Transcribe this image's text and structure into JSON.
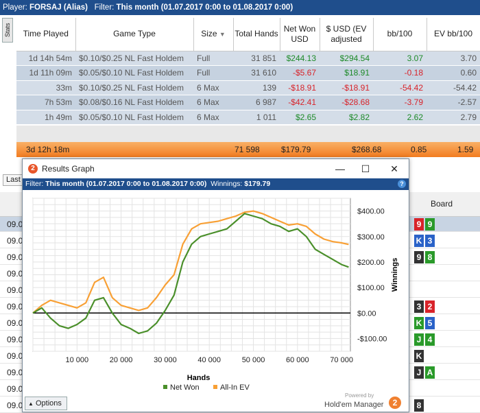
{
  "topbar": {
    "player_label": "Player:",
    "player_value": "FORSAJ (Alias)",
    "filter_label": "Filter:",
    "filter_value": "This month (01.07.2017 0:00 to 01.08.2017 0:00)"
  },
  "stats_tab": "Stats",
  "table": {
    "headers": [
      "Time Played",
      "Game Type",
      "Size",
      "Total Hands",
      "Net Won USD",
      "$ USD (EV adjusted",
      "bb/100",
      "EV bb/100"
    ],
    "rows": [
      {
        "time": "1d 14h 54m",
        "game": "$0.10/$0.25 NL Fast Holdem",
        "size": "Full",
        "hands": "31 851",
        "net": "$244.13",
        "ev": "$294.54",
        "bb": "3.07",
        "evbb": "3.70"
      },
      {
        "time": "1d 11h 09m",
        "game": "$0.05/$0.10 NL Fast Holdem",
        "size": "Full",
        "hands": "31 610",
        "net": "-$5.67",
        "ev": "$18.91",
        "bb": "-0.18",
        "evbb": "0.60"
      },
      {
        "time": "33m",
        "game": "$0.10/$0.25 NL Fast Holdem",
        "size": "6 Max",
        "hands": "139",
        "net": "-$18.91",
        "ev": "-$18.91",
        "bb": "-54.42",
        "evbb": "-54.42"
      },
      {
        "time": "7h 53m",
        "game": "$0.08/$0.16 NL Fast Holdem",
        "size": "6 Max",
        "hands": "6 987",
        "net": "-$42.41",
        "ev": "-$28.68",
        "bb": "-3.79",
        "evbb": "-2.57"
      },
      {
        "time": "1h 49m",
        "game": "$0.05/$0.10 NL Fast Holdem",
        "size": "6 Max",
        "hands": "1 011",
        "net": "$2.65",
        "ev": "$2.82",
        "bb": "2.62",
        "evbb": "2.79"
      }
    ],
    "total": {
      "time": "3d 12h 18m",
      "hands": "71 598",
      "net": "$179.79",
      "ev": "$268.68",
      "bb": "0.85",
      "evbb": "1.59"
    }
  },
  "lower": {
    "last_button": "Last",
    "board_header": "Board",
    "rows": [
      "09.0",
      "09.0",
      "09.0",
      "09.0",
      "09.0",
      "09.0",
      "09.0",
      "09.0",
      "09.0",
      "09.0",
      "09.0",
      "09.0"
    ]
  },
  "window": {
    "title": "Results Graph",
    "logo": "2",
    "filter_label": "Filter:",
    "filter_value": "This month (01.07.2017 0:00 to 01.08.2017 0:00)",
    "winnings_label": "Winnings:",
    "winnings_value": "$179.79",
    "help": "?",
    "options_label": "Options",
    "powered_by": "Powered by",
    "brand": "Hold'em Manager"
  },
  "colors": {
    "net_won": "#4a8f2a",
    "all_in_ev": "#f8a035",
    "zero_line": "#000000",
    "header_blue": "#1f4e8c",
    "total_orange": "#f4892c"
  },
  "chart_data": {
    "type": "line",
    "xlabel": "Hands",
    "ylabel": "Winnings",
    "xlim": [
      0,
      72000
    ],
    "ylim": [
      -150,
      450
    ],
    "x_ticks": [
      10000,
      20000,
      30000,
      40000,
      50000,
      60000,
      70000
    ],
    "x_tick_labels": [
      "10 000",
      "20 000",
      "30 000",
      "40 000",
      "50 000",
      "60 000",
      "70 000"
    ],
    "y_ticks": [
      -100,
      0,
      100,
      200,
      300,
      400
    ],
    "y_tick_labels": [
      "-$100.00",
      "$0.00",
      "$100.00",
      "$200.00",
      "$300.00",
      "$400.00"
    ],
    "legend": [
      "Net Won",
      "All-In EV"
    ],
    "legend_position": "bottom",
    "grid": true,
    "x": [
      0,
      2000,
      4000,
      6000,
      8000,
      10000,
      12000,
      14000,
      16000,
      18000,
      20000,
      22000,
      24000,
      26000,
      28000,
      30000,
      32000,
      34000,
      36000,
      38000,
      40000,
      42000,
      44000,
      46000,
      48000,
      50000,
      52000,
      54000,
      56000,
      58000,
      60000,
      62000,
      64000,
      66000,
      68000,
      70000,
      71598
    ],
    "series": [
      {
        "name": "Net Won",
        "values": [
          0,
          20,
          -20,
          -50,
          -60,
          -45,
          -20,
          50,
          60,
          0,
          -45,
          -60,
          -80,
          -70,
          -40,
          10,
          70,
          200,
          270,
          300,
          310,
          320,
          330,
          360,
          390,
          380,
          370,
          350,
          340,
          320,
          330,
          300,
          250,
          230,
          210,
          190,
          180
        ]
      },
      {
        "name": "All-In EV",
        "values": [
          0,
          30,
          50,
          40,
          30,
          20,
          40,
          120,
          140,
          60,
          30,
          20,
          10,
          20,
          60,
          110,
          150,
          270,
          330,
          350,
          355,
          360,
          370,
          380,
          395,
          400,
          390,
          375,
          360,
          345,
          350,
          340,
          310,
          290,
          280,
          275,
          269
        ]
      }
    ]
  }
}
